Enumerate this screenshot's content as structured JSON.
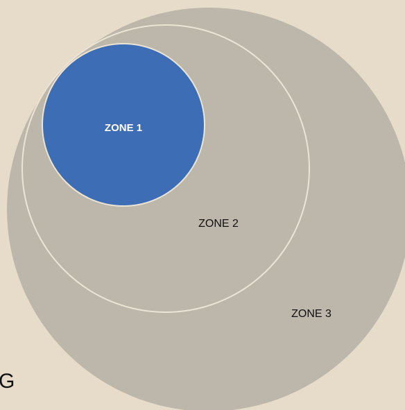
{
  "zones": [
    {
      "label": "ZONE 1"
    },
    {
      "label": "ZONE 2"
    },
    {
      "label": "ZONE 3"
    }
  ],
  "caption": "G"
}
